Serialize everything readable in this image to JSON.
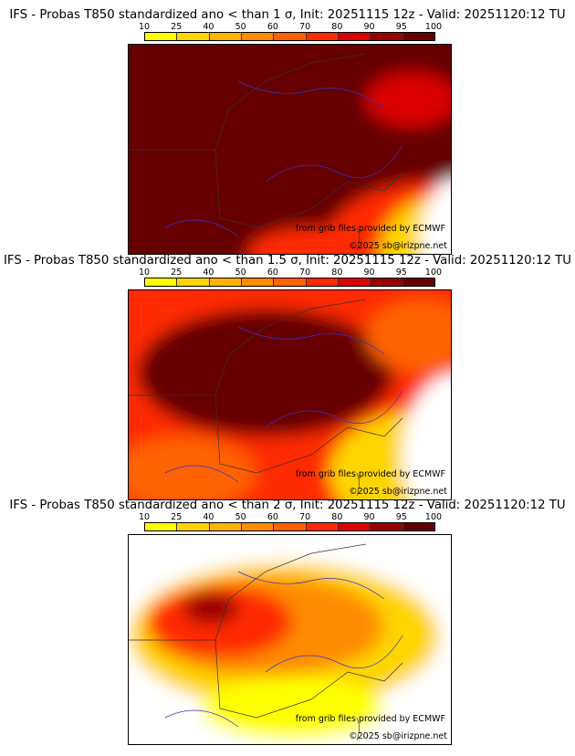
{
  "colorbar": {
    "labels": [
      "10",
      "25",
      "40",
      "50",
      "60",
      "70",
      "80",
      "90",
      "95",
      "100"
    ],
    "colors": [
      "#ffff00",
      "#ffd500",
      "#ffb300",
      "#ff8c00",
      "#ff6200",
      "#ff2a00",
      "#dc0000",
      "#990000",
      "#660000"
    ]
  },
  "panels": [
    {
      "title": "IFS - Probas T850  standardized ano < than 1 σ, Init: 20251115 12z - Valid: 20251120:12 TU",
      "credit": "from grib files provided by ECMWF",
      "copyright": "©2025 sb@irizpne.net",
      "level": 3
    },
    {
      "title": "IFS - Probas T850  standardized ano < than 1.5 σ, Init: 20251115 12z - Valid: 20251120:12 TU",
      "credit": "from grib files provided by ECMWF",
      "copyright": "©2025 sb@irizpne.net",
      "level": 2
    },
    {
      "title": "IFS - Probas T850  standardized ano < than 2 σ, Init: 20251115 12z - Valid: 20251120:12 TU",
      "credit": "from grib files provided by ECMWF",
      "copyright": "©2025 sb@irizpne.net",
      "level": 1
    }
  ]
}
